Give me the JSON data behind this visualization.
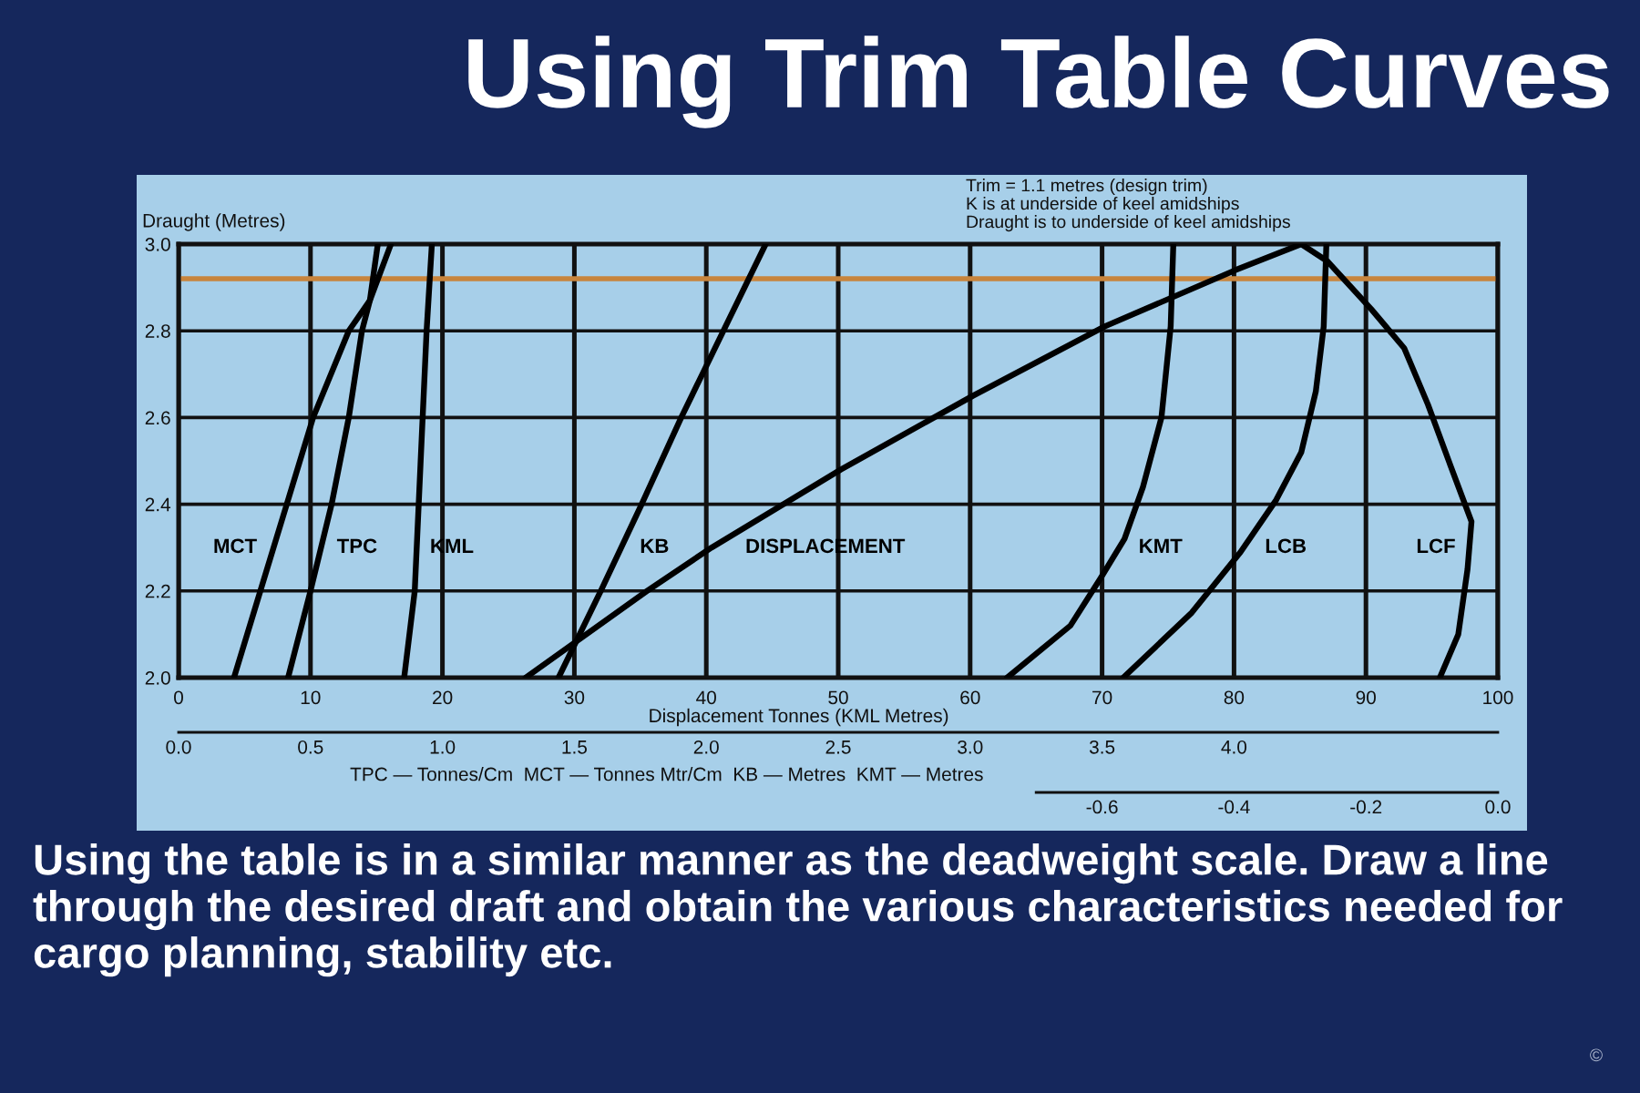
{
  "chart_data": {
    "type": "line",
    "title": "Using Trim Table Curves",
    "xlabel": "Displacement Tonnes (KML Metres)",
    "ylabel": "Draught (Metres)",
    "x2label": "TPC — Tonnes/Cm  MCT — Tonnes Mtr/Cm  KB — Metres  KMT — Metres",
    "annotations": [
      "Trim = 1.1 metres (design trim)",
      "K is at underside of keel amidships",
      "Draught is to underside of keel amidships",
      "-0.6",
      "-0.4",
      "-0.2",
      "0.0",
      "Using the table is in a similar manner as the deadweight scale. Draw a line through the desired draft and obtain the various characteristics needed for cargo planning, stability etc.",
      "©"
    ],
    "xlim": [
      0,
      100
    ],
    "xticks": [
      0,
      10,
      20,
      30,
      40,
      50,
      60,
      70,
      80,
      90,
      100
    ],
    "ylim": [
      2,
      3
    ],
    "yticks": [
      {
        "value": 2,
        "label": "2.0"
      },
      2.2,
      2.4,
      2.6,
      2.8,
      {
        "value": 3,
        "label": "3.0"
      }
    ],
    "x2lim": [
      0,
      5
    ],
    "x2ticks": [
      {
        "value": 0,
        "label": "0.0"
      },
      0.5,
      {
        "value": 1,
        "label": "1.0"
      },
      1.5,
      {
        "value": 2,
        "label": "2.0"
      },
      2.5,
      {
        "value": 3,
        "label": "3.0"
      },
      3.5,
      {
        "value": 4,
        "label": "4.0"
      }
    ],
    "grid": true,
    "line_style": "solid",
    "ref_lines": [
      {
        "axis": "y",
        "value": 2.92,
        "color": "#c8843c"
      }
    ],
    "series": [
      {
        "name": "MCT",
        "color": "#000000",
        "x": [
          4.2,
          6.2,
          8.2,
          10.2,
          12.9,
          14.5,
          16.1
        ],
        "values": [
          2.0,
          2.2,
          2.4,
          2.6,
          2.8,
          2.87,
          3.0
        ]
      },
      {
        "name": "TPC",
        "color": "#000000",
        "x": [
          8.3,
          10.0,
          11.6,
          12.9,
          13.9,
          14.5,
          15.1
        ],
        "values": [
          2.0,
          2.2,
          2.4,
          2.6,
          2.8,
          2.87,
          3.0
        ]
      },
      {
        "name": "KML",
        "color": "#000000",
        "x": [
          17.1,
          17.9,
          18.2,
          18.5,
          18.8,
          19.2
        ],
        "values": [
          2.0,
          2.2,
          2.4,
          2.6,
          2.8,
          3.0
        ]
      },
      {
        "name": "KB",
        "color": "#000000",
        "x": [
          28.8,
          32.0,
          35.1,
          38.1,
          41.3,
          44.5
        ],
        "values": [
          2.0,
          2.2,
          2.4,
          2.6,
          2.8,
          3.0
        ]
      },
      {
        "name": "DISPLACEMENT",
        "color": "#000000",
        "x": [
          26.3,
          35.5,
          40.4,
          50.2,
          60.2,
          70.2,
          80.1,
          85.1
        ],
        "values": [
          2.0,
          2.2,
          2.3,
          2.48,
          2.65,
          2.81,
          2.94,
          3.0
        ]
      },
      {
        "name": "KMT",
        "color": "#000000",
        "x": [
          62.8,
          67.6,
          69.9,
          71.7,
          73.1,
          74.5,
          75.2,
          75.4
        ],
        "values": [
          2.0,
          2.12,
          2.23,
          2.32,
          2.44,
          2.6,
          2.81,
          3.0
        ]
      },
      {
        "name": "LCB",
        "color": "#000000",
        "x": [
          71.6,
          76.8,
          80.5,
          83.2,
          85.1,
          86.2,
          86.8,
          87.0
        ],
        "values": [
          2.0,
          2.15,
          2.29,
          2.41,
          2.52,
          2.66,
          2.81,
          3.0
        ]
      },
      {
        "name": "LCF",
        "color": "#000000",
        "x": [
          95.6,
          97.0,
          97.7,
          98.0,
          96.4,
          94.7,
          92.9,
          90.4,
          87.1,
          85.1
        ],
        "values": [
          2.0,
          2.1,
          2.25,
          2.36,
          2.49,
          2.63,
          2.76,
          2.85,
          2.96,
          3.0
        ]
      }
    ]
  }
}
